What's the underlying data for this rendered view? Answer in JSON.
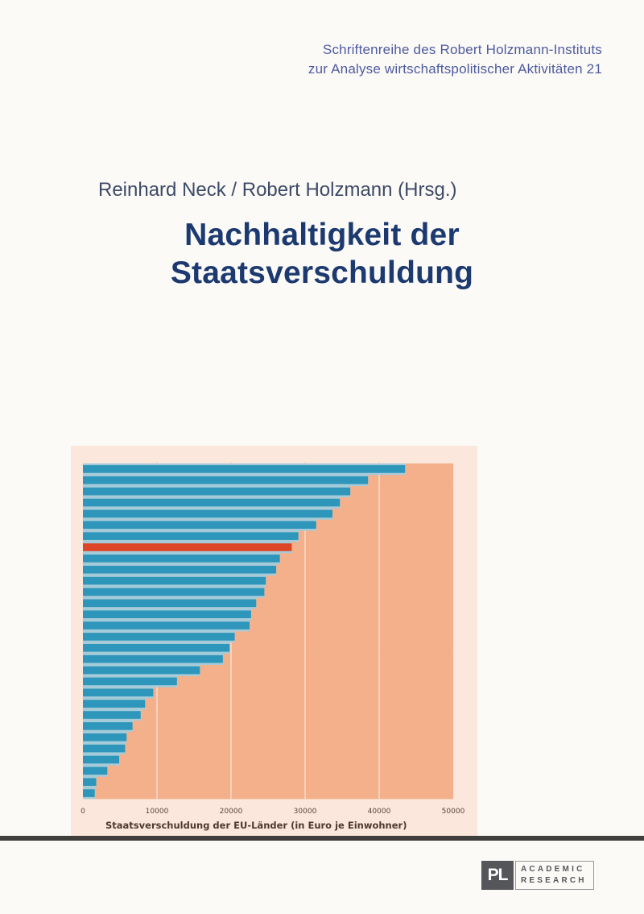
{
  "cover": {
    "series": {
      "line1": "Schriftenreihe des Robert Holzmann-Instituts",
      "line2": "zur Analyse wirtschaftspolitischer Aktivitäten 21"
    },
    "authors": "Reinhard Neck / Robert Holzmann (Hrsg.)",
    "title": {
      "line1": "Nachhaltigkeit der",
      "line2": "Staatsverschuldung"
    }
  },
  "chart_data": {
    "type": "bar",
    "orientation": "horizontal",
    "caption": "Staatsverschuldung der EU-Länder (in Euro je Einwohner)",
    "xlim": [
      0,
      50000
    ],
    "ticks": [
      0,
      10000,
      20000,
      30000,
      40000,
      50000
    ],
    "grid": true,
    "legend": "none",
    "values": [
      43500,
      38500,
      36100,
      34700,
      33700,
      31500,
      29100,
      28200,
      26600,
      26100,
      24700,
      24500,
      23400,
      22700,
      22500,
      20500,
      19800,
      18900,
      15800,
      12700,
      9500,
      8400,
      7800,
      6700,
      5900,
      5700,
      4900,
      3300,
      1800,
      1600
    ],
    "highlight_index": 7
  },
  "publisher": {
    "monogram": "PL",
    "name_line1": "ACADEMIC",
    "name_line2": "RESEARCH"
  },
  "theme": {
    "page-bg": "#fcfaf7",
    "series-color": "#4d5b9e",
    "author-color": "#3d4a66",
    "title-color": "#1c3a70",
    "chart-bg": "#fbe7db",
    "bar-color": "#2e96ba",
    "bar-track-color": "#a5cbd9",
    "highlight-color": "#dc4526",
    "area-color": "#f3b08a",
    "gridline-color": "#f8d6c4",
    "axis-text-color": "#5a463c",
    "caption-color": "#4c3a31",
    "separator-color": "#3f3e3d",
    "logo-color": "#55565a",
    "logo-border-color": "#98989b"
  }
}
